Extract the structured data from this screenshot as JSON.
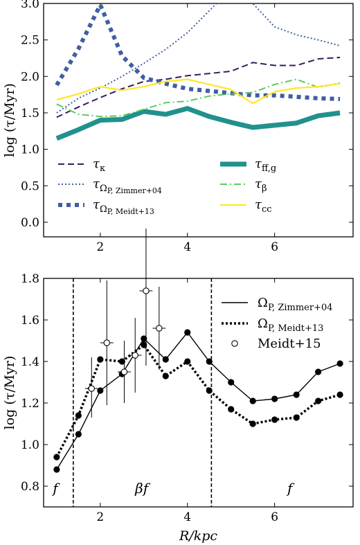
{
  "chart_data": [
    {
      "type": "line",
      "ylabel": "log (τ/Myr)",
      "xlim": [
        0.7,
        7.8
      ],
      "ylim": [
        -0.2,
        3.0
      ],
      "xticks": [
        2,
        4,
        6
      ],
      "yticks": [
        0.0,
        0.5,
        1.0,
        1.5,
        2.0,
        2.5,
        3.0
      ],
      "ytick_labels": [
        "0.0",
        "0.5",
        "1.0",
        "1.5",
        "2.0",
        "2.5",
        "3.0"
      ],
      "x": [
        1.0,
        1.5,
        2.0,
        2.5,
        3.0,
        3.5,
        4.0,
        4.5,
        5.0,
        5.5,
        6.0,
        6.5,
        7.0,
        7.5
      ],
      "series": [
        {
          "key": "tk",
          "name": "τ",
          "sub": "κ",
          "color": "#3b1a5c",
          "style": "dashed",
          "width": 2,
          "values": [
            1.44,
            1.58,
            1.71,
            1.83,
            1.93,
            1.96,
            2.01,
            2.04,
            2.07,
            2.19,
            2.15,
            2.15,
            2.24,
            2.26
          ]
        },
        {
          "key": "tz",
          "name": "τ",
          "sub": "Ω",
          "subsub": "P, Zimmer+04",
          "color": "#3f5ea3",
          "style": "dotted",
          "width": 2,
          "values": [
            1.5,
            1.7,
            1.84,
            2.0,
            2.18,
            2.37,
            2.6,
            2.9,
            3.2,
            3.0,
            2.68,
            2.57,
            2.5,
            2.42
          ]
        },
        {
          "key": "tm",
          "name": "τ",
          "sub": "Ω",
          "subsub": "P, Meidt+13",
          "color": "#3f5ea3",
          "style": "thickdot",
          "width": 6,
          "values": [
            1.88,
            2.38,
            2.98,
            2.28,
            1.98,
            1.9,
            1.83,
            1.8,
            1.77,
            1.74,
            1.74,
            1.72,
            1.7,
            1.69
          ]
        },
        {
          "key": "tff",
          "name": "τ",
          "sub": "ff,g",
          "color": "#21918c",
          "style": "solid",
          "width": 7,
          "values": [
            1.15,
            1.27,
            1.4,
            1.41,
            1.52,
            1.48,
            1.56,
            1.45,
            1.37,
            1.3,
            1.33,
            1.36,
            1.46,
            1.5
          ]
        },
        {
          "key": "tb",
          "name": "τ",
          "sub": "β",
          "color": "#5ec962",
          "style": "dashdot",
          "width": 2,
          "values": [
            1.62,
            1.48,
            1.45,
            1.46,
            1.55,
            1.64,
            1.66,
            1.73,
            1.76,
            1.78,
            1.89,
            1.96,
            1.85,
            1.91
          ]
        },
        {
          "key": "tcc",
          "name": "τ",
          "sub": "cc",
          "color": "#fde725",
          "style": "solid",
          "width": 2.2,
          "values": [
            1.68,
            1.76,
            1.86,
            1.81,
            1.86,
            1.93,
            1.96,
            1.89,
            1.82,
            1.63,
            1.79,
            1.84,
            1.86,
            1.9
          ]
        }
      ]
    },
    {
      "type": "line",
      "xlabel": "R/kpc",
      "ylabel": "log (τ/Myr)",
      "xlim": [
        0.7,
        7.8
      ],
      "ylim": [
        0.7,
        1.8
      ],
      "xticks": [
        2,
        4,
        6
      ],
      "yticks": [
        0.8,
        1.0,
        1.2,
        1.4,
        1.6,
        1.8
      ],
      "ytick_labels": [
        "0.8",
        "1.0",
        "1.2",
        "1.4",
        "1.6",
        "1.8"
      ],
      "x": [
        1.0,
        1.5,
        2.0,
        2.5,
        3.0,
        3.5,
        4.0,
        4.5,
        5.0,
        5.5,
        6.0,
        6.5,
        7.0,
        7.5
      ],
      "series": [
        {
          "key": "oz",
          "name": "Ω",
          "sub": "P, Zimmer+04",
          "style": "solid",
          "values": [
            0.88,
            1.05,
            1.26,
            1.34,
            1.51,
            1.41,
            1.54,
            1.4,
            1.3,
            1.21,
            1.22,
            1.24,
            1.35,
            1.39
          ]
        },
        {
          "key": "om",
          "name": "Ω",
          "sub": "P, Meidt+13",
          "style": "dotted",
          "values": [
            0.94,
            1.14,
            1.41,
            1.4,
            1.48,
            1.33,
            1.4,
            1.26,
            1.17,
            1.1,
            1.12,
            1.13,
            1.21,
            1.24
          ]
        }
      ],
      "points": {
        "name": "Meidt+15",
        "x": [
          1.8,
          2.15,
          2.55,
          2.8,
          3.05,
          3.35
        ],
        "y": [
          1.27,
          1.49,
          1.35,
          1.43,
          1.74,
          1.56
        ],
        "xerr": [
          0.15,
          0.15,
          0.15,
          0.15,
          0.15,
          0.15
        ],
        "yerr_low": [
          0.14,
          0.3,
          0.15,
          0.18,
          0.36,
          0.2
        ],
        "yerr_high": [
          0.15,
          0.3,
          0.15,
          0.18,
          0.3,
          0.2
        ]
      },
      "vlines": [
        1.38,
        4.55
      ],
      "regions": [
        {
          "x": 0.97,
          "label": "f"
        },
        {
          "x": 2.95,
          "label": "βf"
        },
        {
          "x": 6.35,
          "label": "f"
        }
      ]
    }
  ]
}
